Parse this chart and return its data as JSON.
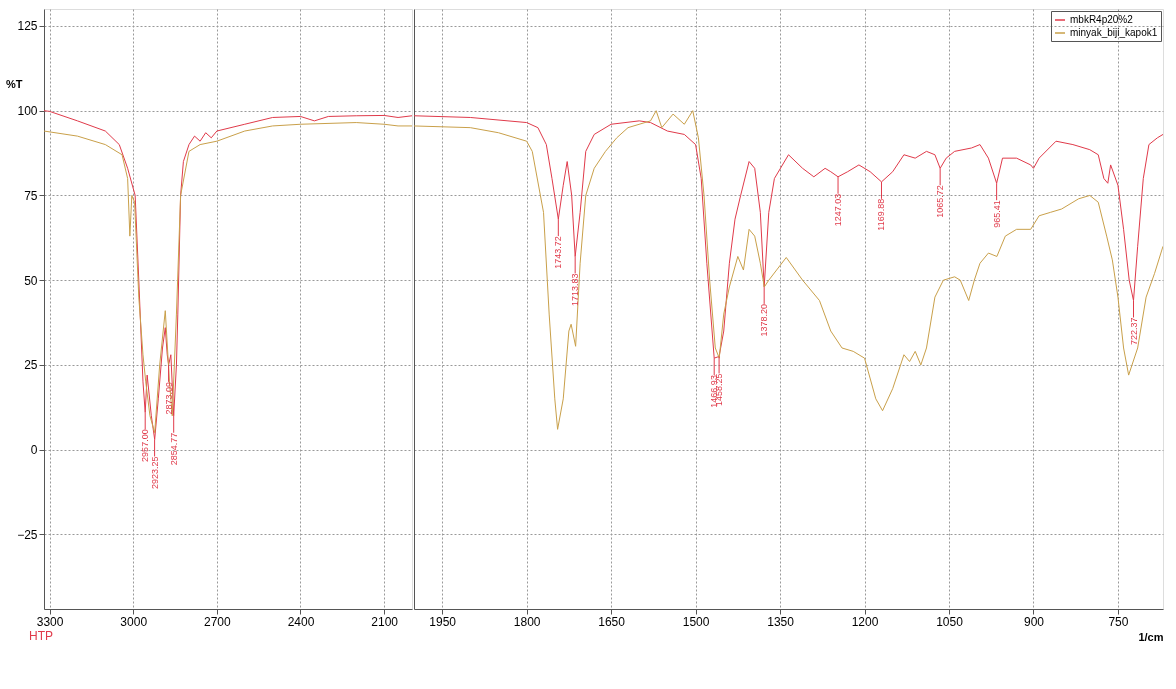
{
  "chart_data": [
    {
      "type": "line",
      "ylabel": "%T",
      "xlim": [
        3320,
        2000
      ],
      "xticks": [
        3300,
        3000,
        2700,
        2400,
        2100
      ],
      "ylim": [
        -47,
        130
      ],
      "yticks": [
        -25,
        0,
        25,
        50,
        75,
        100,
        125
      ],
      "grid": true,
      "tick_labels": "xy",
      "series": [
        {
          "color": "#e03a4a",
          "x": [
            3320,
            3300,
            3200,
            3100,
            3050,
            3020,
            2993,
            2980,
            2965,
            2957,
            2950,
            2935,
            2923,
            2910,
            2895,
            2885,
            2878,
            2873,
            2865,
            2854.77,
            2845,
            2840,
            2830,
            2820,
            2800,
            2780,
            2760,
            2740,
            2720,
            2700,
            2600,
            2500,
            2400,
            2350,
            2300,
            2200,
            2100,
            2050,
            2000
          ],
          "values": [
            100,
            99.8,
            97,
            94,
            90,
            83,
            75,
            50,
            20,
            11,
            22,
            10,
            3,
            15,
            30,
            36,
            28,
            25,
            28,
            10,
            25,
            40,
            75,
            85,
            90,
            92.5,
            91,
            93.5,
            92,
            94,
            96,
            98,
            98.3,
            97,
            98.3,
            98.5,
            98.6,
            98,
            98.5
          ]
        },
        {
          "color": "#c9a04a",
          "x": [
            3320,
            3200,
            3100,
            3040,
            3020,
            3012,
            3005,
            2995,
            2980,
            2965,
            2955,
            2940,
            2923,
            2905,
            2885,
            2870,
            2860,
            2845,
            2830,
            2800,
            2760,
            2700,
            2600,
            2500,
            2400,
            2200,
            2100,
            2050,
            2000
          ],
          "values": [
            94,
            92.5,
            90,
            87,
            80,
            63,
            75,
            73,
            45,
            28,
            20,
            10,
            5,
            25,
            41,
            20,
            10,
            40,
            75,
            88,
            90,
            91,
            94,
            95.5,
            96,
            96.5,
            96,
            95.5,
            95.5
          ]
        }
      ],
      "annotations": [
        {
          "text": "2957.00",
          "x": 2957,
          "y": 11
        },
        {
          "text": "2923.25",
          "x": 2923.25,
          "y": 3
        },
        {
          "text": "2873.09",
          "x": 2873.09,
          "y": 25
        },
        {
          "text": "2854.77",
          "x": 2854.77,
          "y": 10
        },
        "HTP"
      ]
    },
    {
      "type": "line",
      "xlabel": "1/cm",
      "xlim": [
        2000,
        670
      ],
      "xticks": [
        1950,
        1800,
        1650,
        1500,
        1350,
        1200,
        1050,
        900,
        750
      ],
      "ylim": [
        -47,
        130
      ],
      "yticks": [
        -25,
        0,
        25,
        50,
        75,
        100,
        125
      ],
      "grid": true,
      "tick_labels": "x",
      "legend": "top right",
      "series": [
        {
          "name": "mbkR4p20%2",
          "color": "#e03a4a",
          "x": [
            2000,
            1900,
            1800,
            1780,
            1765,
            1755,
            1743.72,
            1735,
            1728,
            1720,
            1713.83,
            1705,
            1695,
            1680,
            1650,
            1600,
            1580,
            1550,
            1520,
            1500,
            1490,
            1480,
            1466.93,
            1458.25,
            1450,
            1440,
            1430,
            1420,
            1405,
            1395,
            1385,
            1378.2,
            1370,
            1360,
            1335,
            1310,
            1290,
            1270,
            1260,
            1247.03,
            1230,
            1210,
            1190,
            1169.88,
            1150,
            1130,
            1110,
            1090,
            1075,
            1065.72,
            1055,
            1040,
            1010,
            995,
            980,
            965.41,
            955,
            930,
            905,
            900,
            890,
            860,
            830,
            800,
            785,
            775,
            768,
            763,
            750,
            740,
            730,
            722.37,
            715,
            705,
            695,
            680,
            670
          ],
          "values": [
            98.5,
            98,
            96.5,
            95,
            90,
            80,
            68,
            78,
            85,
            75,
            57,
            70,
            88,
            93,
            96,
            97,
            96.5,
            94,
            93,
            90,
            80,
            55,
            27,
            27.5,
            35,
            55,
            68,
            75,
            85,
            83,
            70,
            48,
            70,
            80,
            87,
            83,
            80.5,
            83,
            82,
            80.5,
            82,
            84,
            82,
            79,
            82,
            87,
            86,
            88,
            87,
            83,
            86,
            88,
            89,
            90,
            86,
            78.6,
            86,
            86,
            84,
            83,
            86,
            91,
            90,
            88.5,
            87,
            80,
            78.6,
            84,
            78,
            65,
            50,
            44,
            60,
            80,
            90,
            92,
            93
          ]
        },
        {
          "name": "minyak_biji_kapok1",
          "color": "#c9a04a",
          "x": [
            2000,
            1900,
            1850,
            1800,
            1790,
            1770,
            1760,
            1750,
            1745,
            1735,
            1725,
            1721,
            1713,
            1705,
            1695,
            1680,
            1660,
            1640,
            1620,
            1580,
            1570,
            1560,
            1540,
            1520,
            1505,
            1495,
            1485,
            1475,
            1465,
            1458,
            1450,
            1440,
            1425,
            1415,
            1405,
            1395,
            1385,
            1378,
            1370,
            1339,
            1310,
            1280,
            1260,
            1240,
            1220,
            1200,
            1180,
            1168,
            1150,
            1130,
            1120,
            1110,
            1100,
            1090,
            1075,
            1060,
            1040,
            1030,
            1015,
            1005,
            995,
            980,
            965,
            950,
            930,
            905,
            890,
            870,
            850,
            820,
            800,
            785,
            770,
            760,
            750,
            740,
            731,
            715,
            700,
            685,
            670
          ],
          "values": [
            95.5,
            95,
            93.5,
            91,
            88,
            70,
            40,
            15,
            6,
            15,
            35,
            37,
            30.5,
            55,
            75,
            83,
            88,
            92,
            95,
            97,
            100,
            95,
            99,
            96,
            100,
            92,
            75,
            50,
            30,
            27,
            40,
            48,
            57,
            53,
            65,
            63,
            55,
            48,
            50,
            56.7,
            50,
            44,
            35,
            30,
            29,
            27,
            15,
            11.5,
            18,
            28,
            26,
            29,
            25,
            30,
            45,
            50,
            51,
            50,
            44,
            50,
            55,
            58,
            57,
            63,
            65,
            65,
            69,
            70,
            71,
            74,
            75,
            73,
            63,
            56,
            45,
            30,
            22,
            30,
            45,
            52,
            60
          ]
        }
      ],
      "annotations": [
        {
          "text": "1743.72",
          "x": 1743.72,
          "y": 68
        },
        {
          "text": "1713.83",
          "x": 1713.83,
          "y": 57
        },
        {
          "text": "1466.93",
          "x": 1466.93,
          "y": 27
        },
        {
          "text": "1458.25",
          "x": 1458.25,
          "y": 27.5
        },
        {
          "text": "1378.20",
          "x": 1378.2,
          "y": 48
        },
        {
          "text": "1247.03",
          "x": 1247.03,
          "y": 80.5
        },
        {
          "text": "1169.88",
          "x": 1169.88,
          "y": 79
        },
        {
          "text": "1065.72",
          "x": 1065.72,
          "y": 83
        },
        {
          "text": "965.41",
          "x": 965.41,
          "y": 78.6
        },
        {
          "text": "722.37",
          "x": 722.37,
          "y": 44
        }
      ]
    }
  ]
}
